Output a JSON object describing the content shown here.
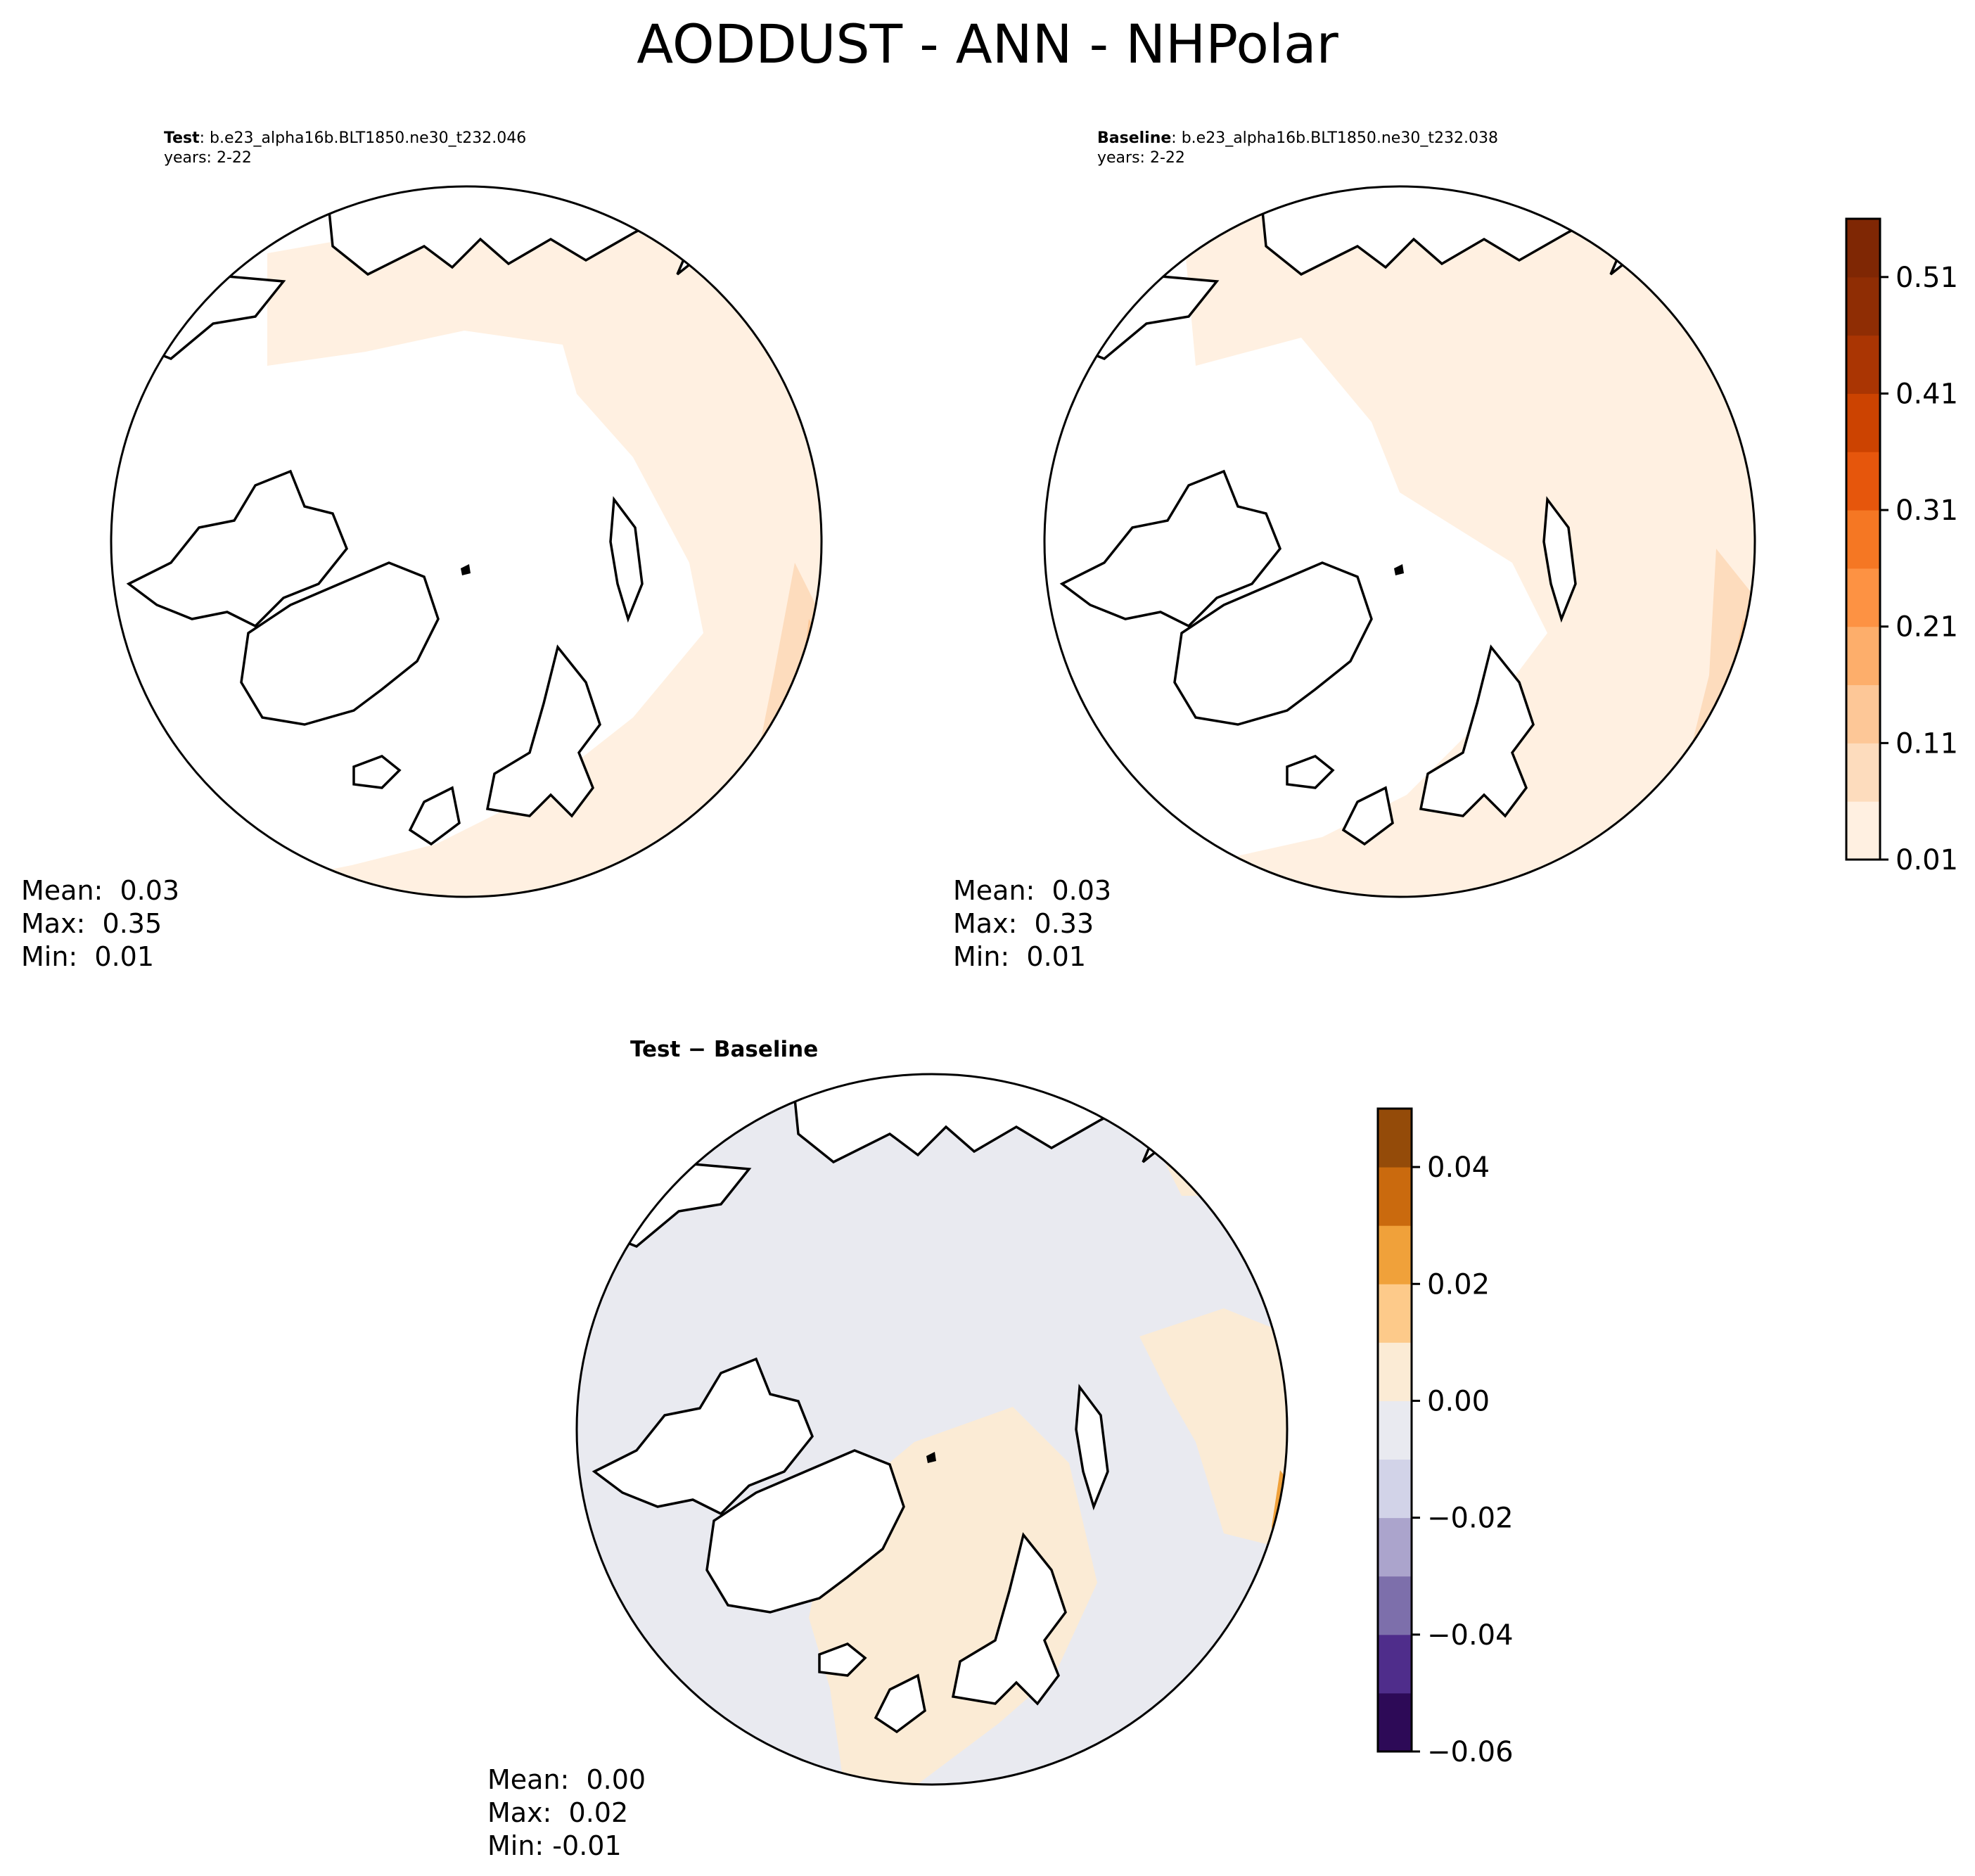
{
  "figure": {
    "title": "AODDUST - ANN - NHPolar"
  },
  "panels": {
    "test": {
      "label": "Test",
      "case": ": b.e23_alpha16b.BLT1850.ne30_t232.046",
      "years": "years: 2-22",
      "mean": "Mean:  0.03",
      "max": "Max:  0.35",
      "min": "Min:  0.01"
    },
    "baseline": {
      "label": "Baseline",
      "case": ": b.e23_alpha16b.BLT1850.ne30_t232.038",
      "years": "years: 2-22",
      "mean": "Mean:  0.03",
      "max": "Max:  0.33",
      "min": "Min:  0.01"
    },
    "diff": {
      "title": "Test − Baseline",
      "mean": "Mean:  0.00",
      "max": "Max:  0.02",
      "min": "Min: -0.01"
    }
  },
  "chart_data": [
    {
      "type": "heatmap",
      "projection": "north-polar-stereographic",
      "name": "Test",
      "colormap": "Oranges",
      "levels": [
        0.01,
        0.06,
        0.11,
        0.16,
        0.21,
        0.26,
        0.31,
        0.36,
        0.41,
        0.46,
        0.51,
        0.56
      ],
      "colorbar": {
        "ticks": [
          0.01,
          0.11,
          0.21,
          0.31,
          0.41,
          0.51
        ],
        "tick_labels": [
          "0.01",
          "0.11",
          "0.21",
          "0.31",
          "0.41",
          "0.51"
        ],
        "colors": [
          "#fff0e1",
          "#fddcbd",
          "#fdc797",
          "#fdae6b",
          "#fd9243",
          "#f57723",
          "#e6560c",
          "#cc4301",
          "#aa3503",
          "#8f2d04",
          "#7f2704"
        ]
      },
      "stats": {
        "mean": 0.03,
        "max": 0.35,
        "min": 0.01
      }
    },
    {
      "type": "heatmap",
      "projection": "north-polar-stereographic",
      "name": "Baseline",
      "colormap": "Oranges",
      "levels": [
        0.01,
        0.06,
        0.11,
        0.16,
        0.21,
        0.26,
        0.31,
        0.36,
        0.41,
        0.46,
        0.51,
        0.56
      ],
      "stats": {
        "mean": 0.03,
        "max": 0.33,
        "min": 0.01
      }
    },
    {
      "type": "heatmap",
      "projection": "north-polar-stereographic",
      "name": "Test − Baseline",
      "colormap": "PuOr_r",
      "levels": [
        -0.06,
        -0.05,
        -0.04,
        -0.03,
        -0.02,
        -0.01,
        0.0,
        0.01,
        0.02,
        0.03,
        0.04,
        0.05
      ],
      "colorbar": {
        "ticks": [
          -0.06,
          -0.04,
          -0.02,
          0.0,
          0.02,
          0.04
        ],
        "tick_labels": [
          "−0.06",
          "−0.04",
          "−0.02",
          "0.00",
          "0.02",
          "0.04"
        ],
        "colors": [
          "#2d0a57",
          "#4f2d8b",
          "#7d6fab",
          "#aba4cc",
          "#d2d3e8",
          "#e9eaf0",
          "#fbebd5",
          "#fdca8a",
          "#f0a13a",
          "#ca6a0e",
          "#944b09"
        ]
      },
      "stats": {
        "mean": 0.0,
        "max": 0.02,
        "min": -0.01
      }
    }
  ]
}
